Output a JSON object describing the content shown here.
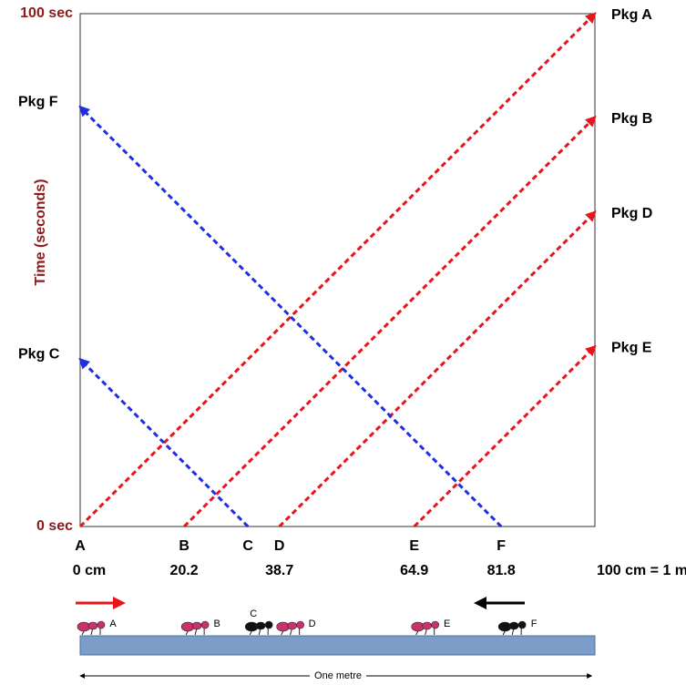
{
  "chart_data": {
    "type": "line",
    "ylabel": "Time (seconds)",
    "xlim": [
      0,
      100
    ],
    "ylim": [
      0,
      100
    ],
    "yticks": [
      {
        "value": 0,
        "label": "0 sec"
      },
      {
        "value": 100,
        "label": "100 sec"
      }
    ],
    "xticks": [
      {
        "value": 0,
        "label": "0 cm"
      },
      20.2,
      38.7,
      64.9,
      81.8,
      {
        "value": 100,
        "label": "100 cm = 1 m"
      }
    ],
    "ants": [
      {
        "name": "A",
        "x": 0,
        "color": "#c8336e"
      },
      {
        "name": "B",
        "x": 20.2,
        "color": "#c8336e"
      },
      {
        "name": "C",
        "x": 32.6,
        "color": "#111111"
      },
      {
        "name": "D",
        "x": 38.7,
        "color": "#c8336e"
      },
      {
        "name": "E",
        "x": 64.9,
        "color": "#c8336e"
      },
      {
        "name": "F",
        "x": 81.8,
        "color": "#111111"
      }
    ],
    "series": [
      {
        "name": "Pkg A",
        "color": "#e8161b",
        "x": [
          0,
          100
        ],
        "values": [
          0,
          100
        ]
      },
      {
        "name": "Pkg B",
        "color": "#e8161b",
        "x": [
          20.2,
          100
        ],
        "values": [
          0,
          79.8
        ]
      },
      {
        "name": "Pkg D",
        "color": "#e8161b",
        "x": [
          38.7,
          100
        ],
        "values": [
          0,
          61.3
        ]
      },
      {
        "name": "Pkg E",
        "color": "#e8161b",
        "x": [
          64.9,
          100
        ],
        "values": [
          0,
          35.1
        ]
      },
      {
        "name": "Pkg F",
        "color": "#1f2fe0",
        "x": [
          81.8,
          0
        ],
        "values": [
          0,
          81.8
        ]
      },
      {
        "name": "Pkg C",
        "color": "#1f2fe0",
        "x": [
          32.6,
          0
        ],
        "values": [
          0,
          32.6
        ]
      }
    ],
    "scale_label": "One metre"
  }
}
